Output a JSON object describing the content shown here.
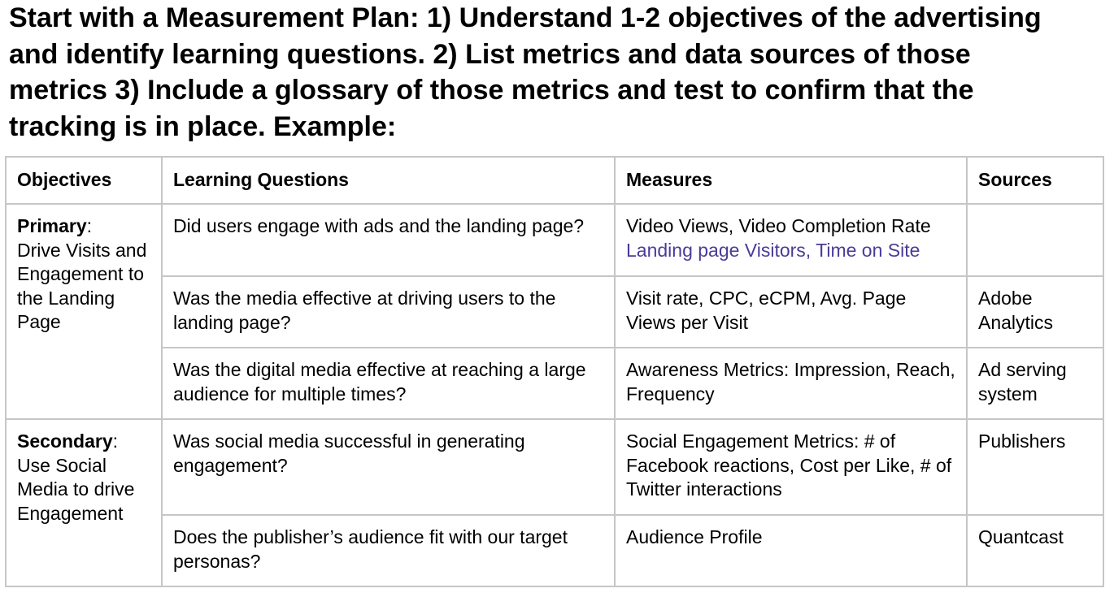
{
  "heading": {
    "lines": [
      "Start with a Measurement Plan: 1) Understand 1-2 objectives of the advertising",
      "and identify learning questions. 2) List metrics and data sources of those",
      "metrics 3) Include a glossary of those metrics and test to confirm that the",
      "tracking is in place. Example:"
    ]
  },
  "table": {
    "headers": {
      "objectives": "Objectives",
      "learning_questions": "Learning Questions",
      "measures": "Measures",
      "sources": "Sources"
    },
    "objectives": [
      {
        "label": "Primary",
        "suffix": ":",
        "description": "Drive Visits and Engagement to the Landing Page"
      },
      {
        "label": "Secondary",
        "suffix": ":",
        "description": "Use Social Media to drive Engagement"
      }
    ],
    "rows": [
      {
        "question": "Did users engage with ads and the landing page?",
        "measures": "Video Views, Video Completion Rate",
        "measures_link": "Landing page Visitors, Time on Site",
        "source": ""
      },
      {
        "question": "Was the media effective at driving users to the landing page?",
        "measures": "Visit rate, CPC, eCPM, Avg. Page Views per Visit",
        "source": "Adobe Analytics"
      },
      {
        "question": "Was the digital media effective at reaching a large audience for multiple times?",
        "measures": "Awareness Metrics: Impression, Reach, Frequency",
        "source": "Ad serving system"
      },
      {
        "question": "Was social media successful in generating engagement?",
        "measures": "Social Engagement Metrics: # of Facebook reactions, Cost per Like, # of Twitter interactions",
        "source": "Publishers"
      },
      {
        "question": "Does the publisher’s audience fit with our target personas?",
        "measures": "Audience Profile",
        "source": "Quantcast"
      }
    ],
    "colors": {
      "border": "#c6c6c6",
      "link": "#4b3a9a",
      "text": "#000000"
    }
  }
}
